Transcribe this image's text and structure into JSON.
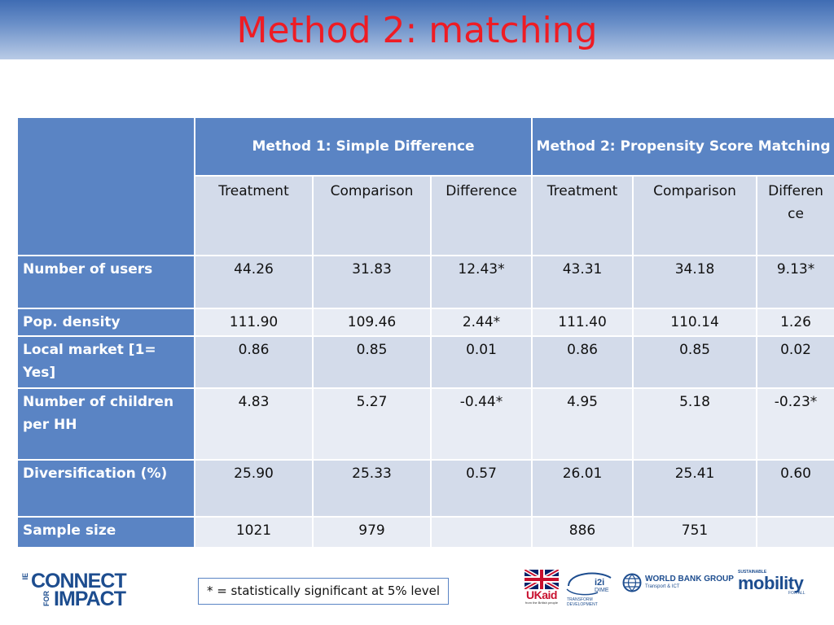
{
  "slide": {
    "title": "Method 2: matching",
    "note": "* = statistically significant at 5% level"
  },
  "table": {
    "groups": [
      "Method 1: Simple Difference",
      "Method 2: Propensity Score Matching"
    ],
    "subheaders": [
      "Treatment",
      "Comparison",
      "Difference",
      "Treatment",
      "Comparison",
      "Differen ce"
    ],
    "rows": [
      {
        "label": "Number of users",
        "values": [
          "44.26",
          "31.83",
          "12.43*",
          "43.31",
          "34.18",
          "9.13*"
        ]
      },
      {
        "label": "Pop. density",
        "values": [
          "111.90",
          "109.46",
          "2.44*",
          "111.40",
          "110.14",
          "1.26"
        ]
      },
      {
        "label": "Local market [1= Yes]",
        "values": [
          "0.86",
          "0.85",
          "0.01",
          "0.86",
          "0.85",
          "0.02"
        ]
      },
      {
        "label": "Number of children per HH",
        "values": [
          "4.83",
          "5.27",
          "-0.44*",
          "4.95",
          "5.18",
          "-0.23*"
        ]
      },
      {
        "label": "Diversification (%)",
        "values": [
          "25.90",
          "25.33",
          "0.57",
          "26.01",
          "25.41",
          "0.60"
        ]
      },
      {
        "label": "Sample size",
        "values": [
          "1021",
          "979",
          "",
          "886",
          "751",
          ""
        ]
      }
    ]
  },
  "logos": {
    "connect": {
      "side": "IE",
      "line1": "CONNECT",
      "line2": "IMPACT",
      "side2": "FOR"
    },
    "ukaid": {
      "text": "UKaid",
      "tagline": "from the British people"
    },
    "i2i": {
      "text": "i2i",
      "sub": "DIME",
      "tagline": "TRANSFORM DEVELOPMENT"
    },
    "wbg": {
      "text": "WORLD BANK GROUP",
      "sub": "Transport & ICT"
    },
    "sm": {
      "top": "SUSTAINABLE",
      "text": "mobility",
      "sub": "FOR ALL"
    }
  },
  "colors": {
    "title": "#ee1c24",
    "header_blue": "#5a84c4",
    "cell_light": "#d3dbea",
    "cell_lighter": "#e8ecf4"
  }
}
